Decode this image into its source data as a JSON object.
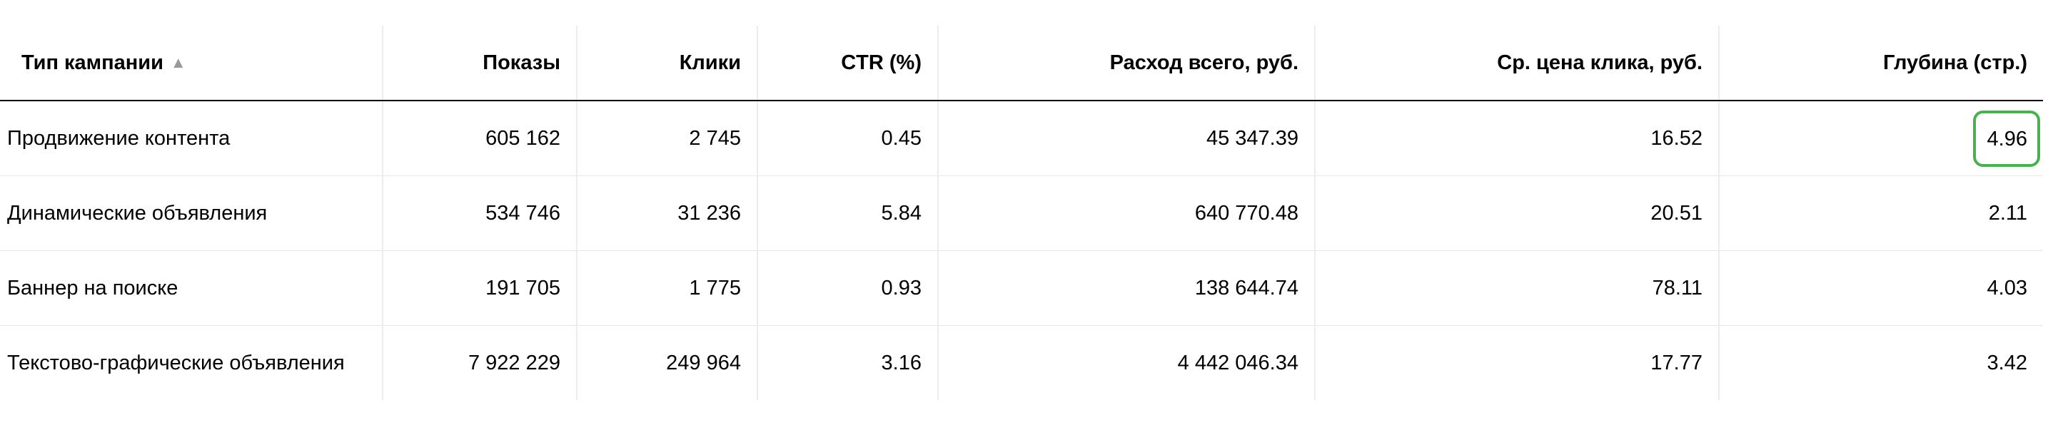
{
  "table": {
    "columns": [
      "Тип кампании",
      "Показы",
      "Клики",
      "CTR (%)",
      "Расход всего, руб.",
      "Ср. цена клика, руб.",
      "Глубина (стр.)"
    ],
    "sort": {
      "column": "Тип кампании",
      "icon": "triangle-up-icon",
      "glyph": "▲"
    },
    "highlight_color": "#4caf50",
    "rows": [
      [
        "Продвижение контента",
        "605 162",
        "2 745",
        "0.45",
        "45 347.39",
        "16.52",
        "4.96"
      ],
      [
        "Динамические объявления",
        "534 746",
        "31 236",
        "5.84",
        "640 770.48",
        "20.51",
        "2.11"
      ],
      [
        "Баннер на поиске",
        "191 705",
        "1 775",
        "0.93",
        "138 644.74",
        "78.11",
        "4.03"
      ],
      [
        "Текстово-графические объявления",
        "7 922 229",
        "249 964",
        "3.16",
        "4 442 046.34",
        "17.77",
        "3.42"
      ]
    ]
  }
}
